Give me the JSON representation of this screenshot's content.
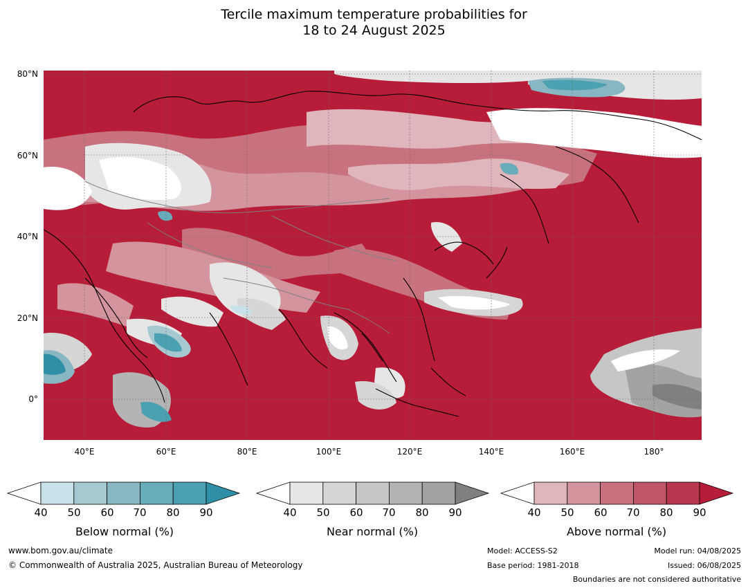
{
  "title": {
    "line1": "Tercile maximum temperature probabilities for",
    "line2": "18 to 24 August 2025"
  },
  "map": {
    "lat_labels": [
      "80°N",
      "60°N",
      "40°N",
      "20°N",
      "0°"
    ],
    "lon_labels": [
      "40°E",
      "60°E",
      "80°E",
      "100°E",
      "120°E",
      "140°E",
      "160°E",
      "180°"
    ]
  },
  "legends": [
    {
      "title": "Below normal (%)",
      "ticks": [
        "40",
        "50",
        "60",
        "70",
        "80",
        "90"
      ],
      "colors": [
        "#ffffff",
        "#c9e2e9",
        "#a6c8d0",
        "#88b6c2",
        "#68abb9",
        "#4ba0b1",
        "#2f8fa6"
      ]
    },
    {
      "title": "Near normal (%)",
      "ticks": [
        "40",
        "50",
        "60",
        "70",
        "80",
        "90"
      ],
      "colors": [
        "#ffffff",
        "#e6e6e6",
        "#d6d6d6",
        "#c6c6c6",
        "#b4b4b4",
        "#a3a3a3",
        "#808080"
      ]
    },
    {
      "title": "Above normal (%)",
      "ticks": [
        "40",
        "50",
        "60",
        "70",
        "80",
        "90"
      ],
      "colors": [
        "#ffffff",
        "#e0b6bd",
        "#d4949d",
        "#c8727f",
        "#bf5667",
        "#b8394f",
        "#b71c38"
      ]
    }
  ],
  "footer": {
    "website": "www.bom.gov.au/climate",
    "copyright": "© Commonwealth of Australia 2025, Australian Bureau of Meteorology",
    "model": "Model: ACCESS-S2",
    "base_period": "Base period: 1981-2018",
    "model_run": "Model run: 04/08/2025",
    "issued": "Issued: 06/08/2025",
    "boundaries": "Boundaries are not considered authoritative"
  }
}
